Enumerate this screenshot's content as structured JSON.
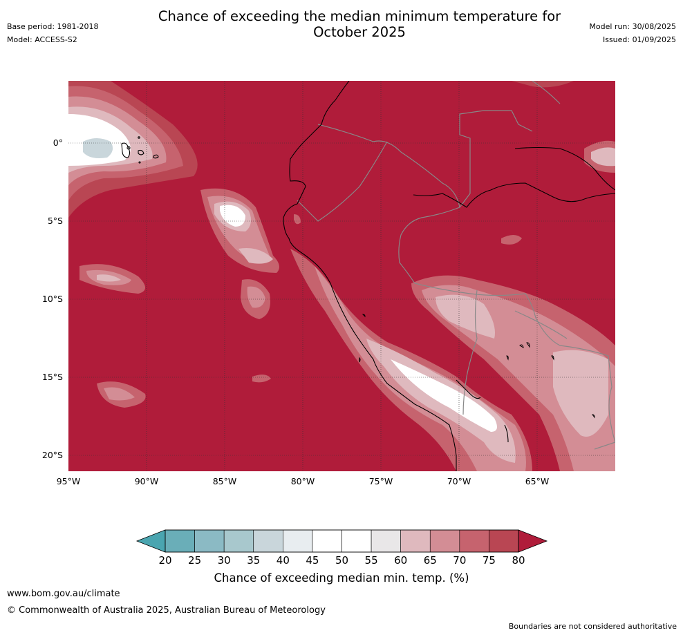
{
  "header": {
    "base_period": "Base period: 1981-2018",
    "model": "Model: ACCESS-S2",
    "title_line1": "Chance of exceeding the median minimum temperature for",
    "title_line2": "October 2025",
    "model_run": "Model run: 30/08/2025",
    "issued": "Issued: 01/09/2025"
  },
  "map": {
    "lat_labels": [
      "0°",
      "5°S",
      "10°S",
      "15°S",
      "20°S"
    ],
    "lon_labels": [
      "95°W",
      "90°W",
      "85°W",
      "80°W",
      "75°W",
      "70°W",
      "65°W"
    ],
    "dominant_category": "80+"
  },
  "colorbar": {
    "ticks": [
      "20",
      "25",
      "30",
      "35",
      "40",
      "45",
      "50",
      "55",
      "60",
      "65",
      "70",
      "75",
      "80"
    ],
    "colors": [
      "#6aaeb8",
      "#8bbac4",
      "#a8c8cd",
      "#c9d6db",
      "#e8edf0",
      "#ffffff",
      "#ffffff",
      "#e9e7e8",
      "#dfb9be",
      "#d38d95",
      "#c6636e",
      "#b94653"
    ],
    "low_color": "#4aa5b0",
    "high_color": "#b01c3a",
    "label": "Chance of exceeding median min. temp. (%)"
  },
  "footer": {
    "url": "www.bom.gov.au/climate",
    "copyright": "© Commonwealth of Australia 2025, Australian Bureau of Meteorology",
    "disclaimer": "Boundaries are not considered authoritative"
  }
}
